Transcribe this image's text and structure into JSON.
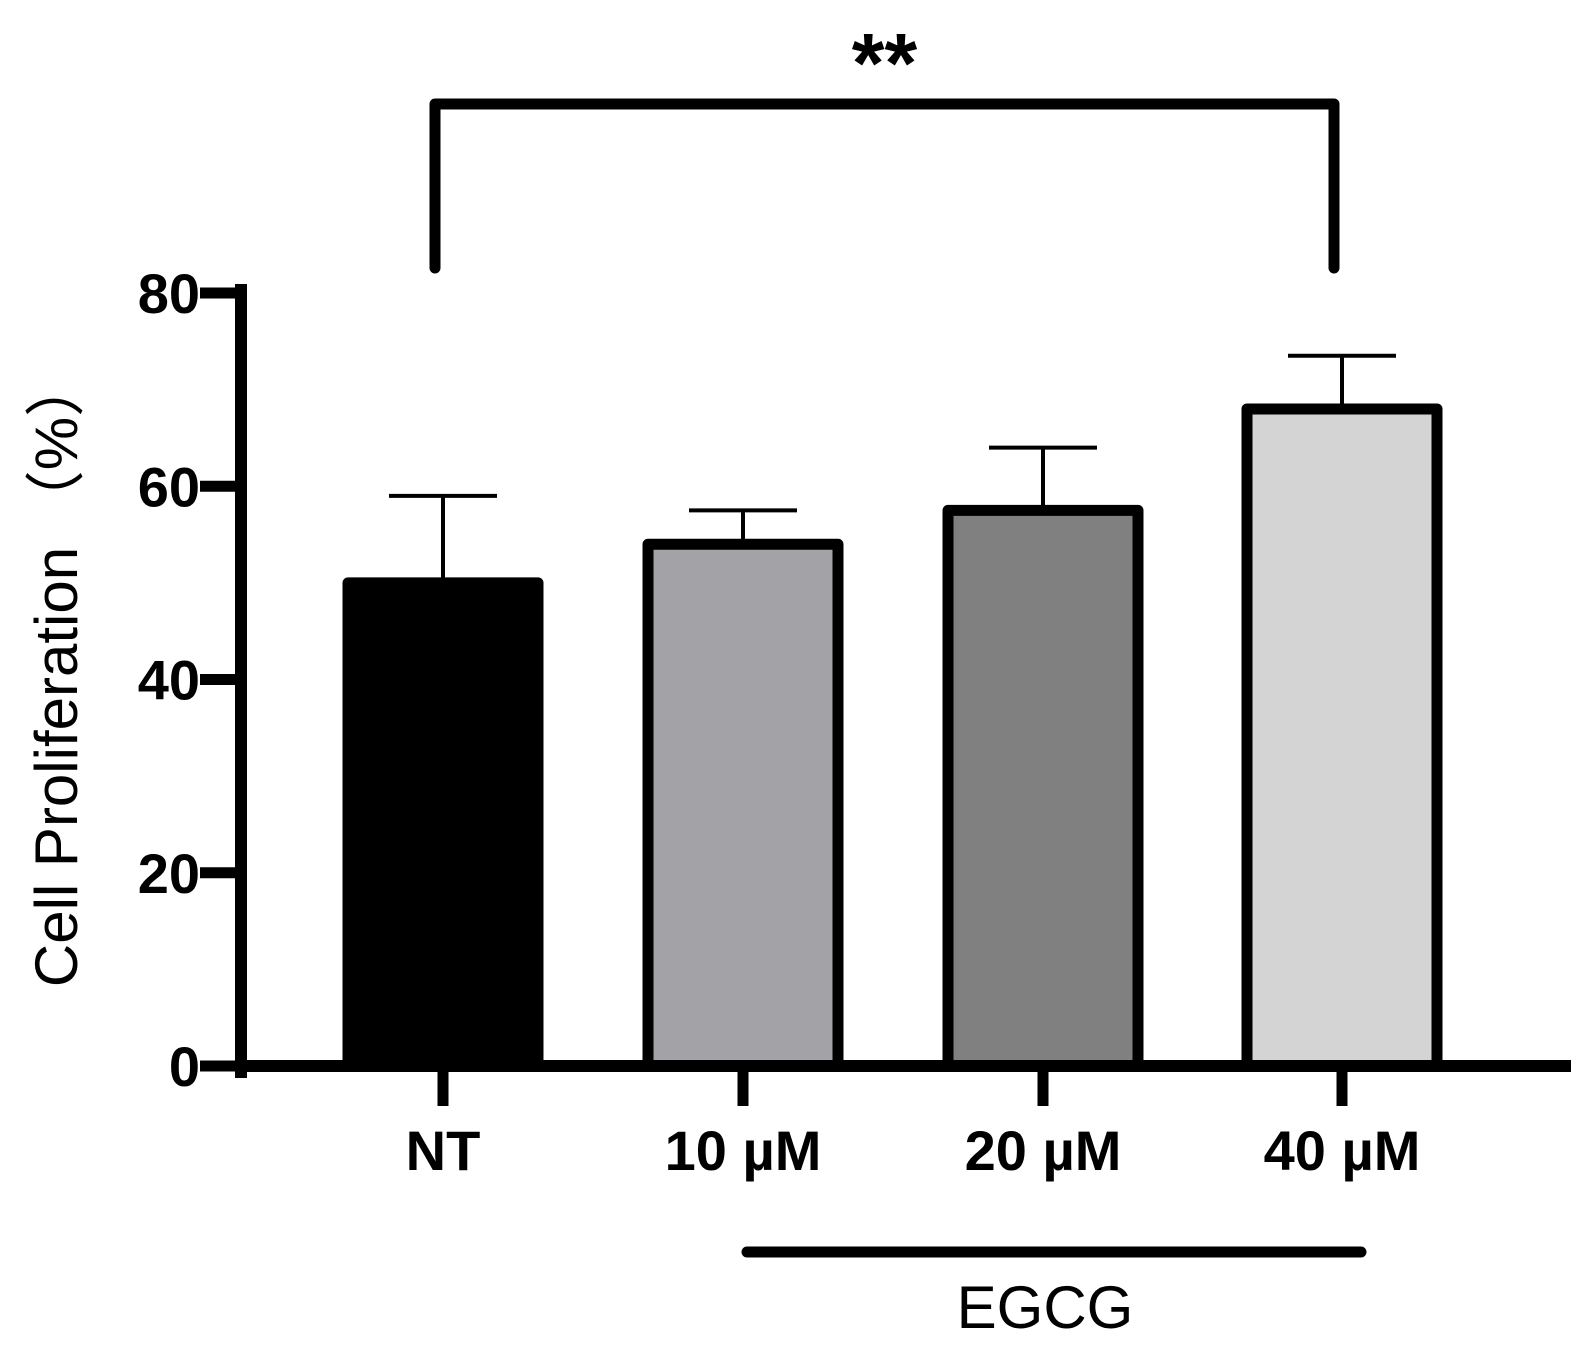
{
  "chart_data": {
    "type": "bar",
    "categories": [
      "NT",
      "10 µM",
      "20 µM",
      "40 µM"
    ],
    "values": [
      50,
      54,
      57.5,
      68
    ],
    "errors": [
      9,
      3.5,
      6.5,
      5.5
    ],
    "bar_colors": [
      "#000000",
      "#a3a3a7",
      "#808080",
      "#d4d4d4"
    ],
    "ylabel": "Cell Proliferation （%）",
    "ylim": [
      0,
      80
    ],
    "yticks": [
      0,
      20,
      40,
      60,
      80
    ],
    "group_label": "EGCG",
    "significance": {
      "label": "**",
      "from_category": "NT",
      "to_category": "40 µM"
    },
    "grid": false
  }
}
